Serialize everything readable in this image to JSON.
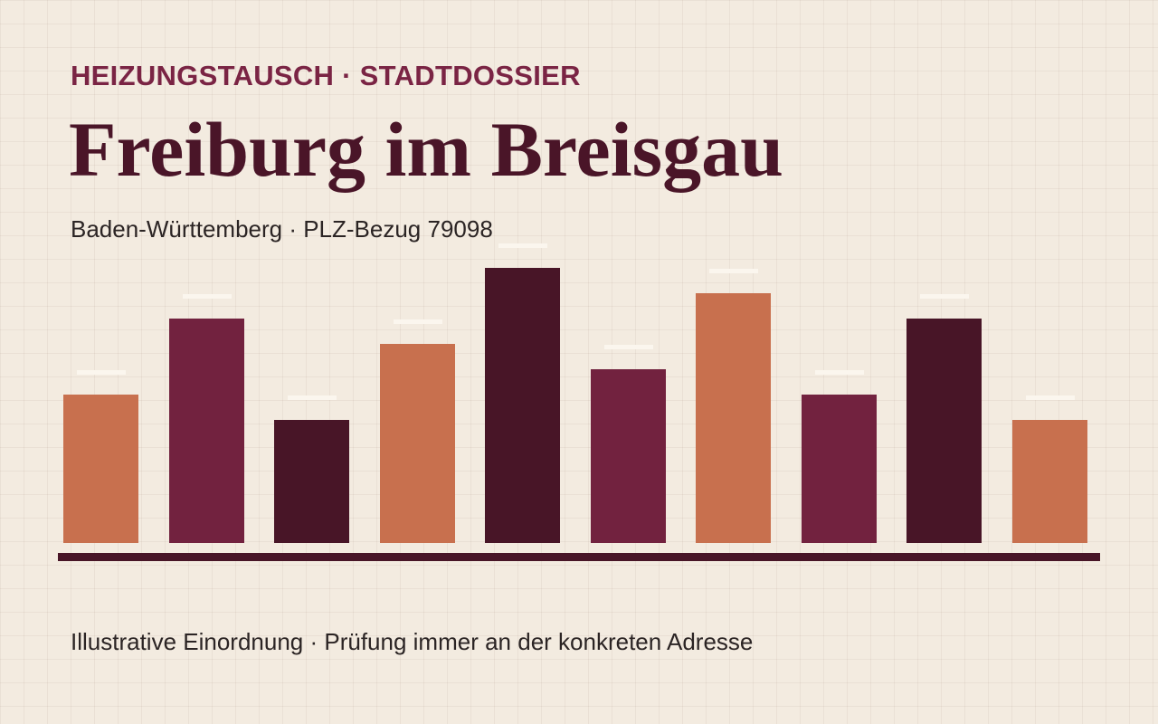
{
  "header": {
    "kicker": "HEIZUNGSTAUSCH · STADTDOSSIER",
    "title": "Freiburg im Breisgau",
    "subtitle": "Baden-Württemberg · PLZ-Bezug 79098"
  },
  "footer": {
    "note": "Illustrative Einordnung · Prüfung immer an der konkreten Adresse"
  }
}
